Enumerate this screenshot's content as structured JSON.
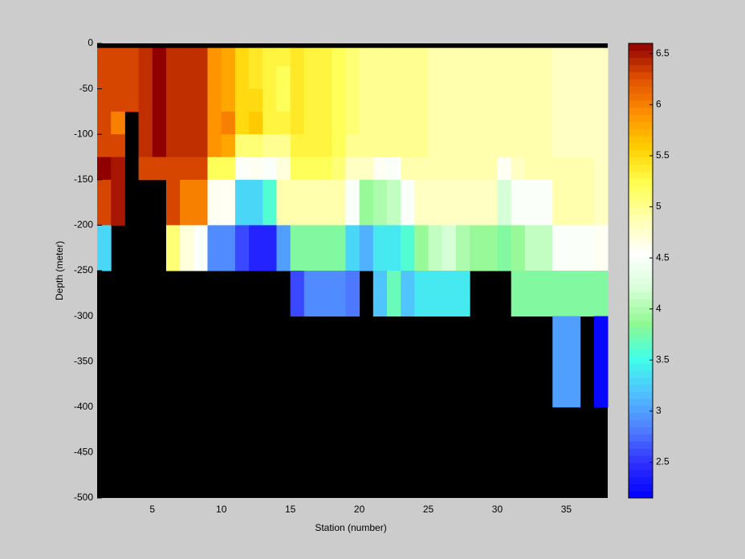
{
  "chart_data": {
    "type": "heatmap",
    "xlabel": "Station (number)",
    "ylabel": "Depth (meter)",
    "x": [
      1,
      2,
      3,
      4,
      5,
      6,
      7,
      8,
      9,
      10,
      11,
      12,
      13,
      14,
      15,
      16,
      17,
      18,
      19,
      20,
      21,
      22,
      23,
      24,
      25,
      26,
      27,
      28,
      29,
      30,
      31,
      32,
      33,
      34,
      35,
      36,
      37,
      38
    ],
    "y": [
      0,
      -5,
      -25,
      -50,
      -75,
      -100,
      -125,
      -150,
      -200,
      -250,
      -300,
      -350,
      -400,
      -500
    ],
    "xlim": [
      1,
      38
    ],
    "xticks": [
      5,
      10,
      15,
      20,
      25,
      30,
      35
    ],
    "ylim": [
      -500,
      0
    ],
    "yticks": [
      0,
      -50,
      -100,
      -150,
      -200,
      -250,
      -300,
      -350,
      -400,
      -450,
      -500
    ],
    "clim": [
      2.15,
      6.6
    ],
    "cticks": [
      2.5,
      3,
      3.5,
      4,
      4.5,
      5,
      5.5,
      6,
      6.5
    ],
    "colormap": [
      "#0000ff",
      "#3030ff",
      "#5080ff",
      "#50c0ff",
      "#40ffe8",
      "#90f890",
      "#d8ffd8",
      "#ffffff",
      "#ffffb0",
      "#ffff50",
      "#ffd000",
      "#ff9000",
      "#e05000",
      "#900000"
    ],
    "missing_color": "#000000",
    "z": [
      [
        null,
        6.3,
        6.3,
        6.3,
        6.3,
        6.3,
        6.6,
        6.3,
        3.3,
        null,
        null,
        null,
        null
      ],
      [
        null,
        6.3,
        6.3,
        6.3,
        6.0,
        6.3,
        6.5,
        6.5,
        null,
        null,
        null,
        null,
        null
      ],
      [
        null,
        6.3,
        6.3,
        6.3,
        null,
        null,
        null,
        null,
        null,
        null,
        null,
        null,
        null
      ],
      [
        null,
        6.4,
        6.4,
        6.4,
        6.4,
        6.4,
        6.3,
        null,
        null,
        null,
        null,
        null,
        null
      ],
      [
        null,
        6.6,
        6.6,
        6.6,
        6.6,
        6.6,
        6.3,
        null,
        null,
        null,
        null,
        null,
        null
      ],
      [
        null,
        6.4,
        6.4,
        6.4,
        6.4,
        6.4,
        6.3,
        6.3,
        5.1,
        null,
        null,
        null,
        null
      ],
      [
        null,
        6.4,
        6.4,
        6.4,
        6.4,
        6.4,
        6.3,
        6.0,
        4.7,
        null,
        null,
        null,
        null
      ],
      [
        null,
        6.4,
        6.4,
        6.4,
        6.4,
        6.4,
        6.3,
        6.0,
        4.5,
        null,
        null,
        null,
        null
      ],
      [
        null,
        5.9,
        5.9,
        5.9,
        5.9,
        5.9,
        5.2,
        4.6,
        2.9,
        null,
        null,
        null,
        null
      ],
      [
        null,
        5.8,
        5.8,
        5.8,
        6.0,
        5.8,
        5.2,
        4.6,
        2.9,
        null,
        null,
        null,
        null
      ],
      [
        null,
        5.5,
        5.5,
        5.5,
        5.5,
        5.1,
        4.5,
        3.3,
        2.6,
        null,
        null,
        null,
        null
      ],
      [
        null,
        5.4,
        5.4,
        5.5,
        5.6,
        5.1,
        4.6,
        3.3,
        2.4,
        null,
        null,
        null,
        null
      ],
      [
        null,
        5.3,
        5.3,
        5.3,
        5.3,
        5.0,
        4.5,
        3.6,
        2.4,
        null,
        null,
        null,
        null
      ],
      [
        null,
        5.3,
        5.2,
        5.2,
        5.3,
        5.0,
        4.7,
        4.9,
        3.0,
        null,
        null,
        null,
        null
      ],
      [
        null,
        5.4,
        5.4,
        5.4,
        5.4,
        5.3,
        5.2,
        4.9,
        3.8,
        2.6,
        null,
        null,
        null
      ],
      [
        null,
        5.3,
        5.3,
        5.3,
        5.3,
        5.3,
        5.2,
        4.9,
        3.8,
        2.9,
        null,
        null,
        null
      ],
      [
        null,
        5.3,
        5.3,
        5.3,
        5.3,
        5.3,
        5.2,
        4.9,
        3.8,
        2.9,
        null,
        null,
        null
      ],
      [
        null,
        5.2,
        5.2,
        5.2,
        5.2,
        5.2,
        5.1,
        4.9,
        3.8,
        2.9,
        null,
        null,
        null
      ],
      [
        null,
        5.1,
        5.1,
        5.1,
        5.1,
        5.0,
        4.8,
        4.5,
        3.3,
        2.8,
        null,
        null,
        null
      ],
      [
        null,
        5.0,
        5.0,
        5.0,
        5.0,
        5.0,
        4.8,
        3.9,
        3.1,
        null,
        null,
        null,
        null
      ],
      [
        null,
        5.0,
        5.0,
        5.0,
        5.0,
        5.0,
        4.6,
        4.0,
        3.4,
        3.2,
        null,
        null,
        null
      ],
      [
        null,
        5.0,
        5.0,
        5.0,
        5.0,
        5.0,
        4.5,
        4.1,
        3.4,
        3.7,
        null,
        null,
        null
      ],
      [
        null,
        5.0,
        5.0,
        5.0,
        5.0,
        5.0,
        4.9,
        4.5,
        3.6,
        3.2,
        null,
        null,
        null
      ],
      [
        null,
        5.0,
        5.0,
        5.0,
        5.0,
        5.0,
        4.9,
        4.8,
        3.9,
        3.4,
        null,
        null,
        null
      ],
      [
        null,
        4.9,
        4.9,
        4.9,
        4.9,
        4.9,
        4.9,
        4.8,
        4.1,
        3.4,
        null,
        null,
        null
      ],
      [
        null,
        4.9,
        4.9,
        4.9,
        4.9,
        4.9,
        4.9,
        4.8,
        4.2,
        3.4,
        null,
        null,
        null
      ],
      [
        null,
        4.9,
        4.9,
        4.9,
        4.9,
        4.9,
        4.9,
        4.8,
        4.0,
        3.4,
        null,
        null,
        null
      ],
      [
        null,
        4.9,
        4.9,
        4.9,
        4.9,
        4.9,
        4.9,
        4.8,
        3.9,
        null,
        null,
        null,
        null
      ],
      [
        null,
        4.9,
        4.9,
        4.9,
        4.9,
        4.9,
        4.9,
        4.8,
        3.9,
        null,
        null,
        null,
        null
      ],
      [
        null,
        4.9,
        4.9,
        4.9,
        4.9,
        4.9,
        4.6,
        4.2,
        3.8,
        null,
        null,
        null,
        null
      ],
      [
        null,
        4.9,
        4.9,
        4.9,
        4.9,
        4.9,
        4.8,
        4.5,
        3.9,
        3.8,
        null,
        null,
        null
      ],
      [
        null,
        4.9,
        4.9,
        4.9,
        4.9,
        4.9,
        4.9,
        4.5,
        4.1,
        3.8,
        null,
        null,
        null
      ],
      [
        null,
        4.9,
        4.9,
        4.9,
        4.9,
        4.9,
        4.9,
        4.5,
        4.1,
        3.8,
        null,
        null,
        null
      ],
      [
        null,
        4.8,
        4.8,
        4.8,
        4.8,
        4.8,
        4.9,
        4.9,
        4.5,
        3.8,
        3.0,
        3.0,
        null
      ],
      [
        null,
        4.8,
        4.8,
        4.8,
        4.8,
        4.8,
        4.9,
        4.9,
        4.5,
        3.8,
        3.0,
        3.0,
        null
      ],
      [
        null,
        4.8,
        4.8,
        4.8,
        4.8,
        4.8,
        4.9,
        4.9,
        4.5,
        3.8,
        null,
        null,
        null
      ],
      [
        null,
        4.8,
        4.8,
        4.8,
        4.8,
        4.8,
        4.8,
        4.8,
        4.6,
        3.8,
        2.2,
        2.2,
        null
      ]
    ]
  }
}
